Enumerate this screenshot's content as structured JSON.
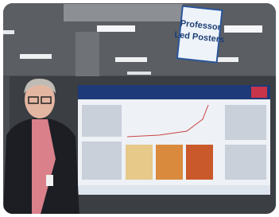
{
  "sign": {
    "line1": "Professor",
    "line2": "Led Posters"
  }
}
